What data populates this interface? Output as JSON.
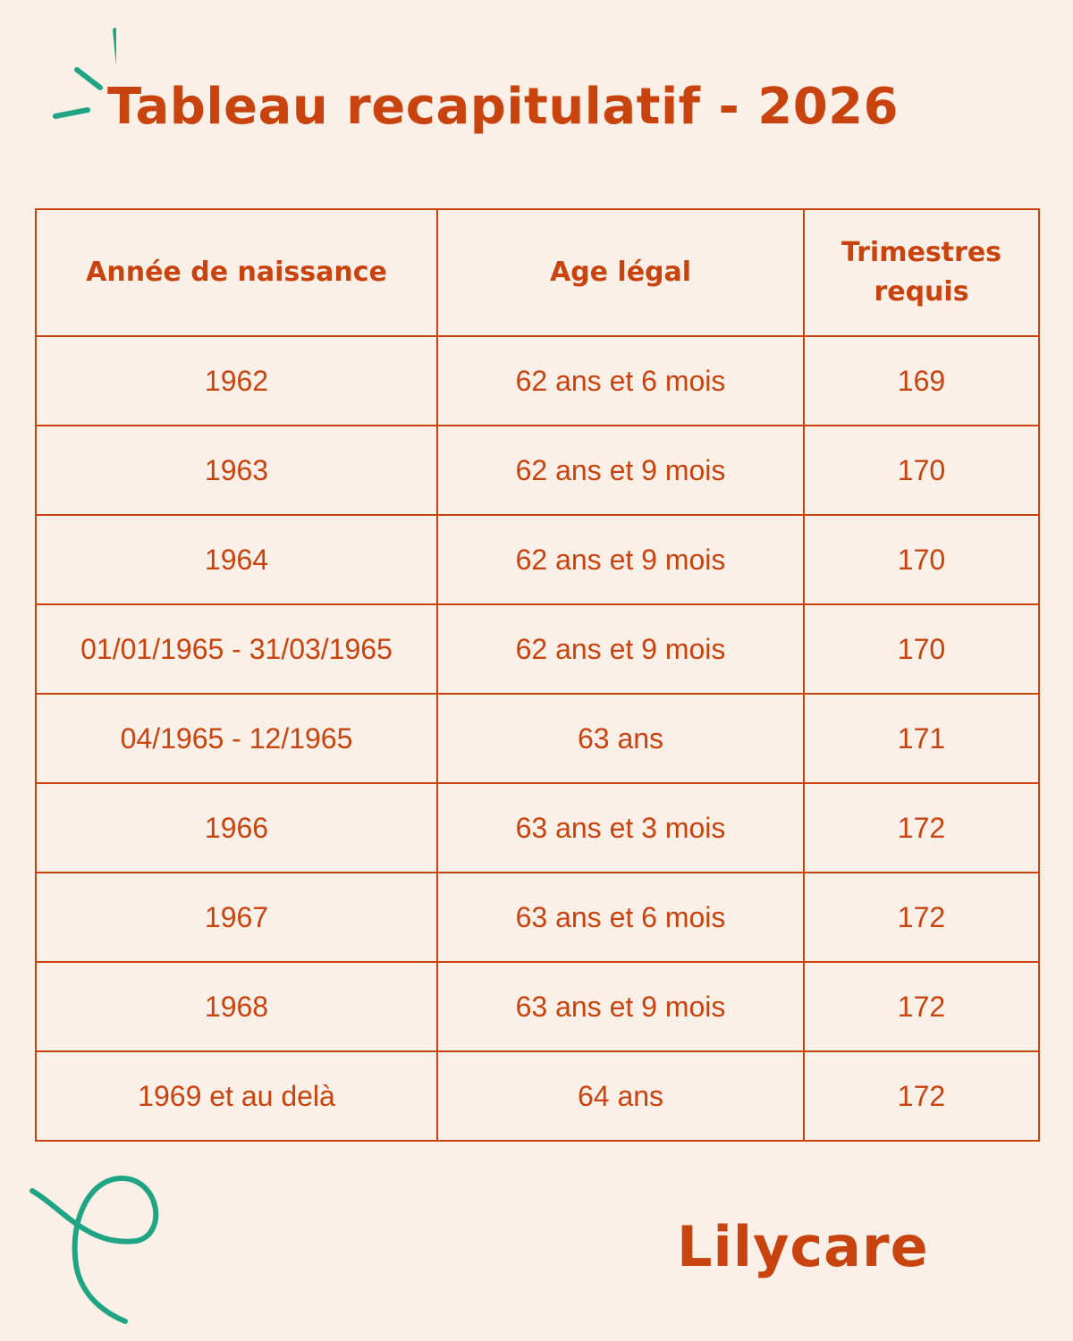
{
  "title": "Tableau recapitulatif - 2026",
  "brand": "Lilycare",
  "colors": {
    "background": "#fbf0e8",
    "primary": "#c8430e",
    "accent": "#1fa584"
  },
  "icons": {
    "top_left": "sparkle-icon",
    "bottom_left": "swirl-icon"
  },
  "table": {
    "headers": [
      "Année de naissance",
      "Age légal",
      "Trimestres requis"
    ],
    "rows": [
      [
        "1962",
        "62 ans et 6 mois",
        "169"
      ],
      [
        "1963",
        "62 ans et 9 mois",
        "170"
      ],
      [
        "1964",
        "62 ans et 9 mois",
        "170"
      ],
      [
        "01/01/1965 - 31/03/1965",
        "62 ans et 9 mois",
        "170"
      ],
      [
        "04/1965 - 12/1965",
        "63 ans",
        "171"
      ],
      [
        "1966",
        "63 ans et 3 mois",
        "172"
      ],
      [
        "1967",
        "63 ans et 6 mois",
        "172"
      ],
      [
        "1968",
        "63 ans et 9 mois",
        "172"
      ],
      [
        "1969 et au delà",
        "64 ans",
        "172"
      ]
    ]
  }
}
